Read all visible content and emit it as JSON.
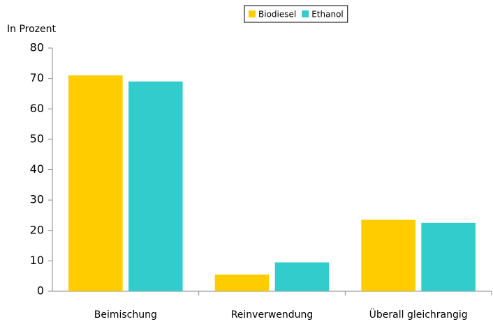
{
  "chart_data": {
    "type": "bar",
    "y_label": "In Prozent",
    "categories": [
      "Beimischung",
      "Reinverwendung",
      "Überall gleichrangig"
    ],
    "series": [
      {
        "name": "Biodiesel",
        "color": "#ffcc00",
        "values": [
          71,
          5.5,
          23.5
        ]
      },
      {
        "name": "Ethanol",
        "color": "#33cccc",
        "values": [
          69,
          9.5,
          22.5
        ]
      }
    ],
    "ylim": [
      0,
      80
    ],
    "yticks": [
      0,
      10,
      20,
      30,
      40,
      50,
      60,
      70,
      80
    ],
    "grid": false,
    "legend": "top"
  }
}
